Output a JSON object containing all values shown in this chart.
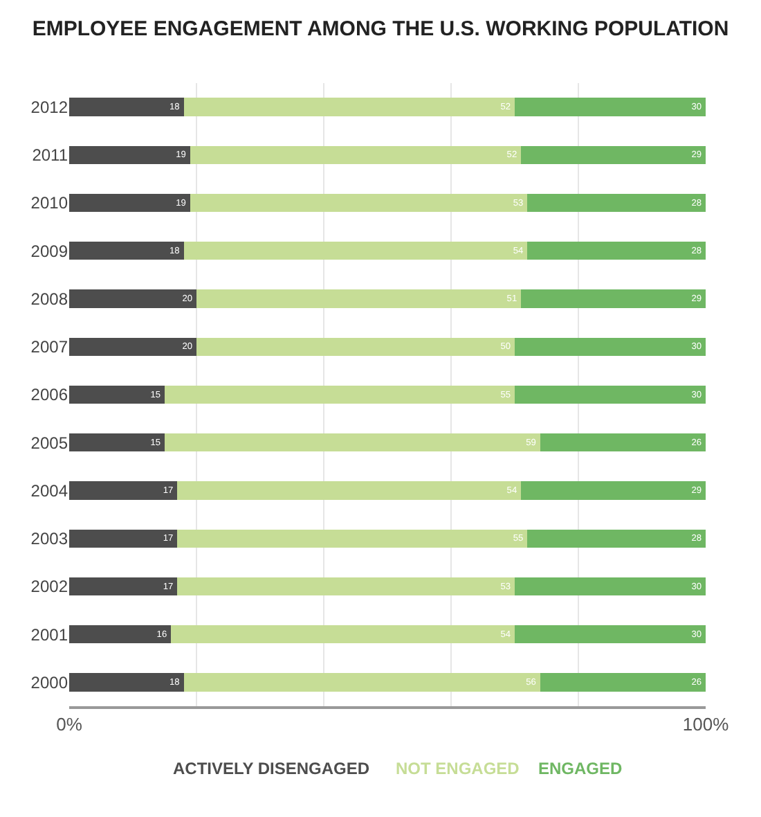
{
  "chart_data": {
    "type": "bar",
    "orientation": "horizontal",
    "stacked": true,
    "title": "EMPLOYEE ENGAGEMENT AMONG THE U.S. WORKING POPULATION",
    "categories": [
      "2012",
      "2011",
      "2010",
      "2009",
      "2008",
      "2007",
      "2006",
      "2005",
      "2004",
      "2003",
      "2002",
      "2001",
      "2000"
    ],
    "series": [
      {
        "name": "ACTIVELY DISENGAGED",
        "color": "#4d4d4d",
        "values": [
          18,
          19,
          19,
          18,
          20,
          20,
          15,
          15,
          17,
          17,
          17,
          16,
          18
        ]
      },
      {
        "name": "NOT ENGAGED",
        "color": "#c6dd96",
        "values": [
          52,
          52,
          53,
          54,
          51,
          50,
          55,
          59,
          54,
          55,
          53,
          54,
          56
        ]
      },
      {
        "name": "ENGAGED",
        "color": "#6fb763",
        "values": [
          30,
          29,
          28,
          28,
          29,
          30,
          30,
          26,
          29,
          28,
          30,
          30,
          26
        ]
      }
    ],
    "xlim": [
      0,
      100
    ],
    "xticks": [
      {
        "value": 0,
        "label": "0%"
      },
      {
        "value": 20,
        "label": null
      },
      {
        "value": 40,
        "label": null
      },
      {
        "value": 60,
        "label": null
      },
      {
        "value": 80,
        "label": null
      },
      {
        "value": 100,
        "label": "100%"
      }
    ],
    "grid": "x",
    "legend": "bottom",
    "data_labels": true
  }
}
